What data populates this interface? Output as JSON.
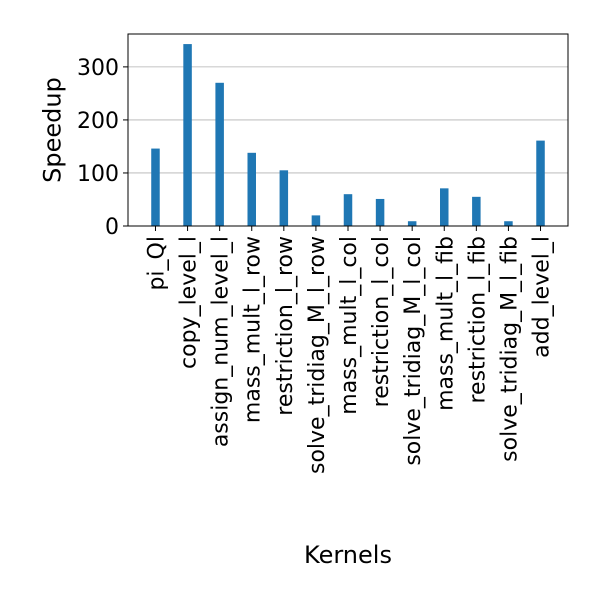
{
  "chart_data": {
    "type": "bar",
    "title": "",
    "xlabel": "Kernels",
    "ylabel": "Speedup",
    "categories": [
      "pi_Ql",
      "copy_level_l",
      "assign_num_level_l",
      "mass_mult_l_row",
      "restriction_l_row",
      "solve_tridiag_M_l_row",
      "mass_mult_l_col",
      "restriction_l_col",
      "solve_tridiag_M_l_col",
      "mass_mult_l_fib",
      "restriction_l_fib",
      "solve_tridiag_M_l_fib",
      "add_level_l"
    ],
    "values": [
      146,
      343,
      270,
      138,
      105,
      20,
      60,
      51,
      9,
      71,
      55,
      9,
      161
    ],
    "ylim": [
      0,
      362
    ],
    "yticks": [
      0,
      100,
      200,
      300
    ],
    "grid": "horizontal",
    "bar_color": "#1f77b4"
  }
}
